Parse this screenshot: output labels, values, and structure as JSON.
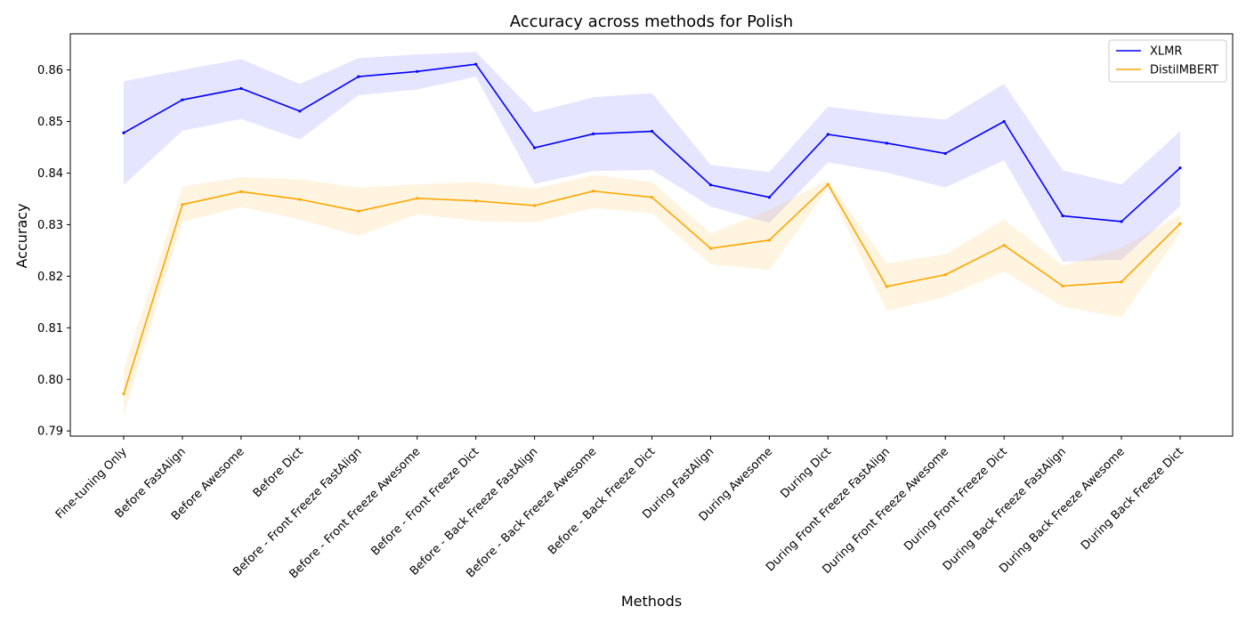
{
  "chart_data": {
    "type": "line",
    "title": "Accuracy across methods for Polish",
    "xlabel": "Methods",
    "ylabel": "Accuracy",
    "ylim": [
      0.789,
      0.867
    ],
    "yticks": [
      0.79,
      0.8,
      0.81,
      0.82,
      0.83,
      0.84,
      0.85,
      0.86
    ],
    "ytick_labels": [
      "0.79",
      "0.80",
      "0.81",
      "0.82",
      "0.83",
      "0.84",
      "0.85",
      "0.86"
    ],
    "grid": false,
    "legend_position": "top-right",
    "categories": [
      "Fine-tuning Only",
      "Before FastAlign",
      "Before Awesome",
      "Before Dict",
      "Before - Front Freeze FastAlign",
      "Before - Front Freeze Awesome",
      "Before - Front Freeze Dict",
      "Before - Back Freeze FastAlign",
      "Before - Back Freeze Awesome",
      "Before - Back Freeze Dict",
      "During FastAlign",
      "During Awesome",
      "During Dict",
      "During Front Freeze FastAlign",
      "During Front Freeze Awesome",
      "During Front Freeze Dict",
      "During Back Freeze FastAlign",
      "During Back Freeze Awesome",
      "During Back Freeze Dict"
    ],
    "series": [
      {
        "name": "XLMR",
        "color": "#0000ff",
        "values": [
          0.8478,
          0.8542,
          0.8564,
          0.852,
          0.8587,
          0.8597,
          0.8611,
          0.8449,
          0.8476,
          0.8481,
          0.8377,
          0.8353,
          0.8475,
          0.8458,
          0.8438,
          0.85,
          0.8317,
          0.8306,
          0.841
        ],
        "lower": [
          0.8377,
          0.8482,
          0.8505,
          0.8465,
          0.8551,
          0.8562,
          0.8587,
          0.8379,
          0.8404,
          0.8406,
          0.8335,
          0.8303,
          0.8421,
          0.8401,
          0.8372,
          0.8425,
          0.8228,
          0.8232,
          0.8336
        ],
        "upper": [
          0.8578,
          0.86,
          0.8621,
          0.8573,
          0.8623,
          0.863,
          0.8635,
          0.8518,
          0.8547,
          0.8555,
          0.8416,
          0.8402,
          0.8529,
          0.8514,
          0.8504,
          0.8573,
          0.8405,
          0.8378,
          0.8481
        ]
      },
      {
        "name": "DistilMBERT",
        "color": "#ffa500",
        "values": [
          0.7972,
          0.8339,
          0.8364,
          0.8349,
          0.8326,
          0.8351,
          0.8346,
          0.8337,
          0.8365,
          0.8353,
          0.8254,
          0.827,
          0.8378,
          0.818,
          0.8203,
          0.826,
          0.8181,
          0.8189,
          0.8302
        ],
        "lower": [
          0.793,
          0.8305,
          0.8334,
          0.831,
          0.8278,
          0.832,
          0.8307,
          0.8304,
          0.8332,
          0.8322,
          0.8223,
          0.8212,
          0.837,
          0.8133,
          0.816,
          0.8209,
          0.8141,
          0.812,
          0.8283
        ],
        "upper": [
          0.8019,
          0.8374,
          0.8392,
          0.8388,
          0.8372,
          0.8378,
          0.8383,
          0.837,
          0.8396,
          0.8383,
          0.8283,
          0.8328,
          0.8386,
          0.8225,
          0.8243,
          0.831,
          0.822,
          0.8255,
          0.8319
        ]
      }
    ]
  }
}
